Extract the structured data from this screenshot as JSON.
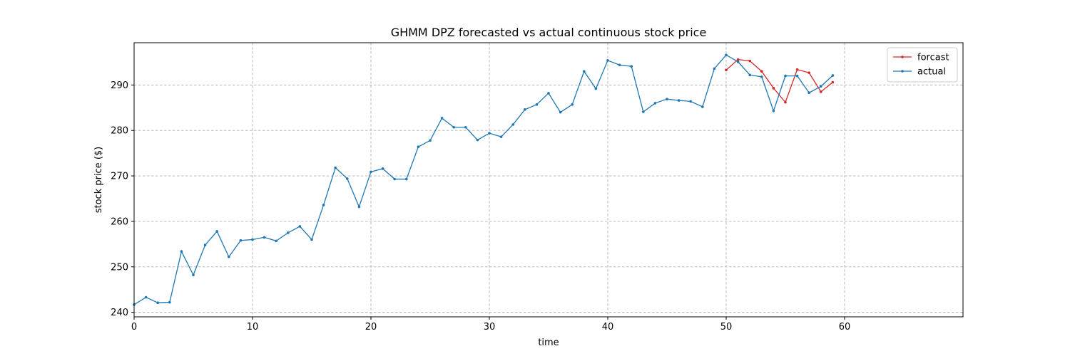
{
  "chart_data": {
    "type": "line",
    "title": "GHMM DPZ forecasted vs actual continuous stock price",
    "xlabel": "time",
    "ylabel": "stock price ($)",
    "xlim": [
      0,
      70
    ],
    "ylim": [
      239,
      299.3
    ],
    "x_ticks": [
      0,
      10,
      20,
      30,
      40,
      50,
      60
    ],
    "y_ticks": [
      240,
      250,
      260,
      270,
      280,
      290
    ],
    "grid": true,
    "legend_position": "top-right",
    "series": [
      {
        "name": "forcast",
        "color": "#d62728",
        "x": [
          50,
          51,
          52,
          53,
          54,
          55,
          56,
          57,
          58,
          59
        ],
        "y": [
          293.3,
          295.6,
          295.3,
          293.0,
          289.3,
          286.2,
          293.4,
          292.7,
          288.5,
          290.6
        ]
      },
      {
        "name": "actual",
        "color": "#1f77b4",
        "x": [
          0,
          1,
          2,
          3,
          4,
          5,
          6,
          7,
          8,
          9,
          10,
          11,
          12,
          13,
          14,
          15,
          16,
          17,
          18,
          19,
          20,
          21,
          22,
          23,
          24,
          25,
          26,
          27,
          28,
          29,
          30,
          31,
          32,
          33,
          34,
          35,
          36,
          37,
          38,
          39,
          40,
          41,
          42,
          43,
          44,
          45,
          46,
          47,
          48,
          49,
          50,
          51,
          52,
          53,
          54,
          55,
          56,
          57,
          58,
          59
        ],
        "y": [
          241.7,
          243.3,
          242.1,
          242.2,
          253.4,
          248.2,
          254.8,
          257.8,
          252.2,
          255.8,
          256.0,
          256.5,
          255.7,
          257.5,
          258.9,
          256.0,
          263.6,
          271.8,
          269.4,
          263.2,
          270.9,
          271.6,
          269.3,
          269.3,
          276.4,
          277.8,
          282.7,
          280.7,
          280.7,
          277.9,
          279.4,
          278.6,
          281.3,
          284.6,
          285.7,
          288.2,
          284.0,
          285.7,
          293.0,
          289.2,
          295.4,
          294.4,
          294.1,
          284.1,
          286.0,
          286.9,
          286.6,
          286.4,
          285.2,
          293.6,
          296.6,
          295.1,
          292.2,
          291.8,
          284.3,
          292.0,
          292.0,
          288.3,
          289.7,
          292.1
        ]
      }
    ]
  }
}
